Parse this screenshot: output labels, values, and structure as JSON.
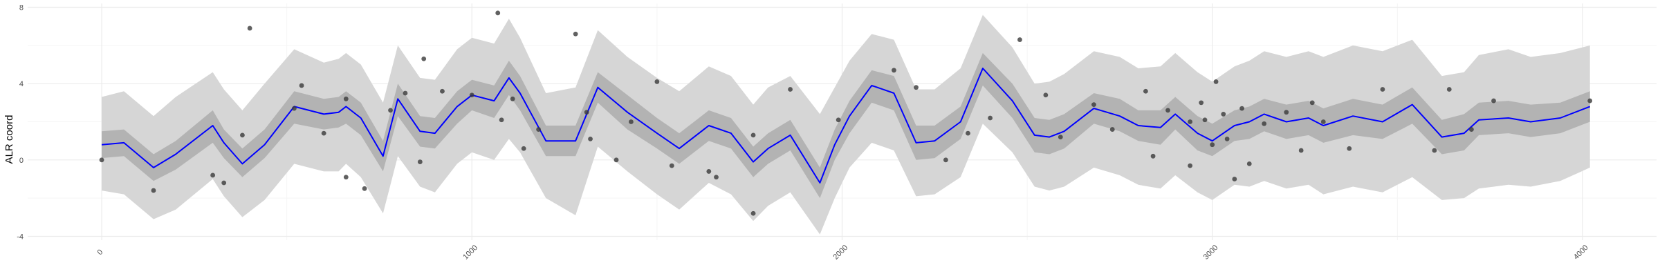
{
  "chart_data": {
    "type": "line",
    "title": "",
    "xlabel": "",
    "ylabel": "ALR coord",
    "xlim": [
      -200,
      4200
    ],
    "ylim": [
      -4.2,
      8.2
    ],
    "x_ticks": [
      0,
      1000,
      2000,
      3000,
      4000
    ],
    "x_tick_labels": [
      "0",
      "1000",
      "2000",
      "3000",
      "4000"
    ],
    "y_ticks": [
      -4,
      0,
      4,
      8
    ],
    "y_tick_labels": [
      "-4",
      "0",
      "4",
      "8"
    ],
    "grid": true,
    "legend": "none",
    "colors": {
      "mean_line": "#0000ff",
      "inner_band": "#b3b3b3",
      "outer_band": "#d6d6d6",
      "points": "#3a3a3a",
      "grid_major": "#ebebeb",
      "grid_minor": "#f5f5f5"
    },
    "series": [
      {
        "kind": "line",
        "x": [
          0,
          60,
          140,
          200,
          300,
          330,
          380,
          440,
          520,
          600,
          640,
          660,
          700,
          760,
          800,
          860,
          900,
          960,
          1000,
          1060,
          1100,
          1130,
          1200,
          1280,
          1340,
          1420,
          1500,
          1560,
          1640,
          1700,
          1760,
          1800,
          1860,
          1940,
          1980,
          2020,
          2080,
          2140,
          2200,
          2250,
          2320,
          2380,
          2460,
          2520,
          2560,
          2600,
          2680,
          2750,
          2800,
          2860,
          2900,
          2960,
          3000,
          3060,
          3100,
          3140,
          3200,
          3260,
          3300,
          3380,
          3460,
          3540,
          3620,
          3680,
          3720,
          3800,
          3860,
          3940,
          4020
        ],
        "y": [
          0.8,
          0.9,
          -0.4,
          0.3,
          1.8,
          0.9,
          -0.2,
          0.8,
          2.8,
          2.4,
          2.5,
          2.8,
          2.2,
          0.2,
          3.2,
          1.5,
          1.4,
          2.8,
          3.4,
          3.1,
          4.3,
          3.5,
          1.0,
          1.0,
          3.8,
          2.5,
          1.4,
          0.6,
          1.8,
          1.4,
          -0.1,
          0.6,
          1.3,
          -1.2,
          0.8,
          2.3,
          3.9,
          3.5,
          0.9,
          1.0,
          2.0,
          4.8,
          3.1,
          1.3,
          1.2,
          1.5,
          2.7,
          2.3,
          1.8,
          1.7,
          2.4,
          1.4,
          1.0,
          1.8,
          2.0,
          2.4,
          2.0,
          2.2,
          1.8,
          2.3,
          2.0,
          2.9,
          1.2,
          1.4,
          2.1,
          2.2,
          2.0,
          2.2,
          2.8
        ]
      },
      {
        "kind": "band",
        "x": [
          0,
          60,
          140,
          200,
          300,
          330,
          380,
          440,
          520,
          600,
          640,
          660,
          700,
          760,
          800,
          860,
          900,
          960,
          1000,
          1060,
          1100,
          1130,
          1200,
          1280,
          1340,
          1420,
          1500,
          1560,
          1640,
          1700,
          1760,
          1800,
          1860,
          1940,
          1980,
          2020,
          2080,
          2140,
          2200,
          2250,
          2320,
          2380,
          2460,
          2520,
          2560,
          2600,
          2680,
          2750,
          2800,
          2860,
          2900,
          2960,
          3000,
          3060,
          3100,
          3140,
          3200,
          3260,
          3300,
          3380,
          3460,
          3540,
          3620,
          3680,
          3720,
          3800,
          3860,
          3940,
          4020
        ],
        "lower": [
          0.1,
          0.2,
          -1.1,
          -0.5,
          0.9,
          0.1,
          -0.9,
          0.1,
          1.9,
          1.6,
          1.7,
          1.9,
          1.3,
          -0.6,
          2.3,
          0.7,
          0.6,
          1.9,
          2.6,
          2.2,
          3.4,
          2.6,
          0.2,
          0.2,
          3.0,
          1.6,
          0.6,
          -0.2,
          1.0,
          0.6,
          -0.9,
          -0.2,
          0.5,
          -2.0,
          0.0,
          1.4,
          3.0,
          2.6,
          0.0,
          0.1,
          1.1,
          3.9,
          2.2,
          0.4,
          0.3,
          0.6,
          1.9,
          1.5,
          1.0,
          0.8,
          1.6,
          0.5,
          0.2,
          1.0,
          1.1,
          1.5,
          1.1,
          1.3,
          0.9,
          1.3,
          1.1,
          1.9,
          0.3,
          0.5,
          1.3,
          1.4,
          1.2,
          1.4,
          2.0
        ],
        "upper": [
          1.5,
          1.6,
          0.3,
          1.0,
          2.6,
          1.6,
          0.6,
          1.6,
          3.6,
          3.2,
          3.3,
          3.6,
          3.0,
          1.0,
          4.0,
          2.3,
          2.2,
          3.6,
          4.2,
          3.9,
          5.2,
          4.4,
          1.8,
          1.8,
          4.6,
          3.4,
          2.2,
          1.4,
          2.6,
          2.2,
          0.7,
          1.4,
          2.1,
          -0.4,
          1.6,
          3.1,
          4.7,
          4.4,
          1.8,
          1.8,
          2.8,
          5.6,
          4.0,
          2.2,
          2.1,
          2.4,
          3.5,
          3.2,
          2.6,
          2.6,
          3.3,
          2.3,
          1.9,
          2.6,
          2.8,
          3.2,
          2.9,
          3.1,
          2.7,
          3.2,
          2.9,
          3.8,
          2.1,
          2.4,
          3.0,
          3.1,
          2.9,
          3.0,
          3.6
        ]
      },
      {
        "kind": "band",
        "x": [
          0,
          60,
          140,
          200,
          300,
          330,
          380,
          440,
          520,
          600,
          640,
          660,
          700,
          760,
          800,
          860,
          900,
          960,
          1000,
          1060,
          1100,
          1130,
          1200,
          1280,
          1340,
          1420,
          1500,
          1560,
          1640,
          1700,
          1760,
          1800,
          1860,
          1940,
          1980,
          2020,
          2080,
          2140,
          2200,
          2250,
          2320,
          2380,
          2460,
          2520,
          2560,
          2600,
          2680,
          2750,
          2800,
          2860,
          2900,
          2960,
          3000,
          3060,
          3100,
          3140,
          3200,
          3260,
          3300,
          3380,
          3460,
          3540,
          3620,
          3680,
          3720,
          3800,
          3860,
          3940,
          4020
        ],
        "lower": [
          -1.6,
          -1.8,
          -3.1,
          -2.6,
          -1.0,
          -1.9,
          -3.0,
          -2.1,
          -0.2,
          -0.6,
          -0.6,
          -0.2,
          -0.9,
          -2.8,
          0.2,
          -1.4,
          -1.7,
          -0.2,
          0.4,
          0.0,
          1.1,
          0.4,
          -2.0,
          -2.9,
          0.7,
          -0.6,
          -1.8,
          -2.6,
          -1.2,
          -1.8,
          -3.2,
          -2.4,
          -1.7,
          -3.9,
          -2.0,
          -0.4,
          0.9,
          0.5,
          -1.9,
          -1.8,
          -0.9,
          1.9,
          0.4,
          -1.4,
          -1.6,
          -1.4,
          -0.4,
          -0.8,
          -1.3,
          -1.5,
          -0.8,
          -1.7,
          -2.1,
          -1.3,
          -1.4,
          -1.1,
          -1.5,
          -1.3,
          -1.8,
          -1.4,
          -1.7,
          -0.9,
          -2.1,
          -2.0,
          -1.5,
          -1.3,
          -1.4,
          -1.1,
          -0.4
        ],
        "upper": [
          3.3,
          3.6,
          2.3,
          3.3,
          4.6,
          3.7,
          2.6,
          4.0,
          5.8,
          5.1,
          5.3,
          5.6,
          5.0,
          3.0,
          6.0,
          4.3,
          4.2,
          5.8,
          6.4,
          6.1,
          7.4,
          6.4,
          3.5,
          3.8,
          6.8,
          5.4,
          4.3,
          3.6,
          4.9,
          4.4,
          2.9,
          3.8,
          4.4,
          2.4,
          3.8,
          5.2,
          6.6,
          6.3,
          3.7,
          3.7,
          4.8,
          7.6,
          5.9,
          4.0,
          4.1,
          4.5,
          5.7,
          5.4,
          4.8,
          4.9,
          5.6,
          4.6,
          4.1,
          4.9,
          5.2,
          5.7,
          5.4,
          5.7,
          5.4,
          6.0,
          5.7,
          6.3,
          4.4,
          4.6,
          5.5,
          5.8,
          5.4,
          5.6,
          6.0
        ]
      },
      {
        "kind": "points",
        "x": [
          0,
          140,
          300,
          330,
          380,
          400,
          520,
          540,
          600,
          660,
          660,
          710,
          780,
          820,
          860,
          870,
          920,
          1000,
          1070,
          1080,
          1110,
          1140,
          1180,
          1280,
          1310,
          1320,
          1390,
          1430,
          1500,
          1540,
          1640,
          1660,
          1760,
          1760,
          1860,
          1990,
          2140,
          2200,
          2280,
          2340,
          2400,
          2480,
          2550,
          2590,
          2680,
          2730,
          2820,
          2840,
          2880,
          2940,
          2940,
          2970,
          2980,
          3000,
          3010,
          3030,
          3040,
          3060,
          3080,
          3100,
          3140,
          3200,
          3240,
          3270,
          3300,
          3370,
          3460,
          3600,
          3640,
          3700,
          3760,
          4020
        ],
        "y": [
          0.0,
          -1.6,
          -0.8,
          -1.2,
          1.3,
          6.9,
          2.7,
          3.9,
          1.4,
          3.2,
          -0.9,
          -1.5,
          2.6,
          3.5,
          -0.1,
          5.3,
          3.6,
          3.4,
          7.7,
          2.1,
          3.2,
          0.6,
          1.6,
          6.6,
          2.5,
          1.1,
          0.0,
          2.0,
          4.1,
          -0.3,
          -0.6,
          -0.9,
          1.3,
          -2.8,
          3.7,
          2.1,
          4.7,
          3.8,
          -0.0,
          1.4,
          2.2,
          6.3,
          3.4,
          1.2,
          2.9,
          1.6,
          3.6,
          0.2,
          2.6,
          2.0,
          -0.3,
          3.0,
          2.1,
          0.8,
          4.1,
          2.4,
          1.1,
          -1.0,
          2.7,
          -0.2,
          1.9,
          2.5,
          0.5,
          3.0,
          2.0,
          0.6,
          3.7,
          0.5,
          3.7,
          1.6,
          3.1,
          3.1
        ]
      }
    ]
  }
}
